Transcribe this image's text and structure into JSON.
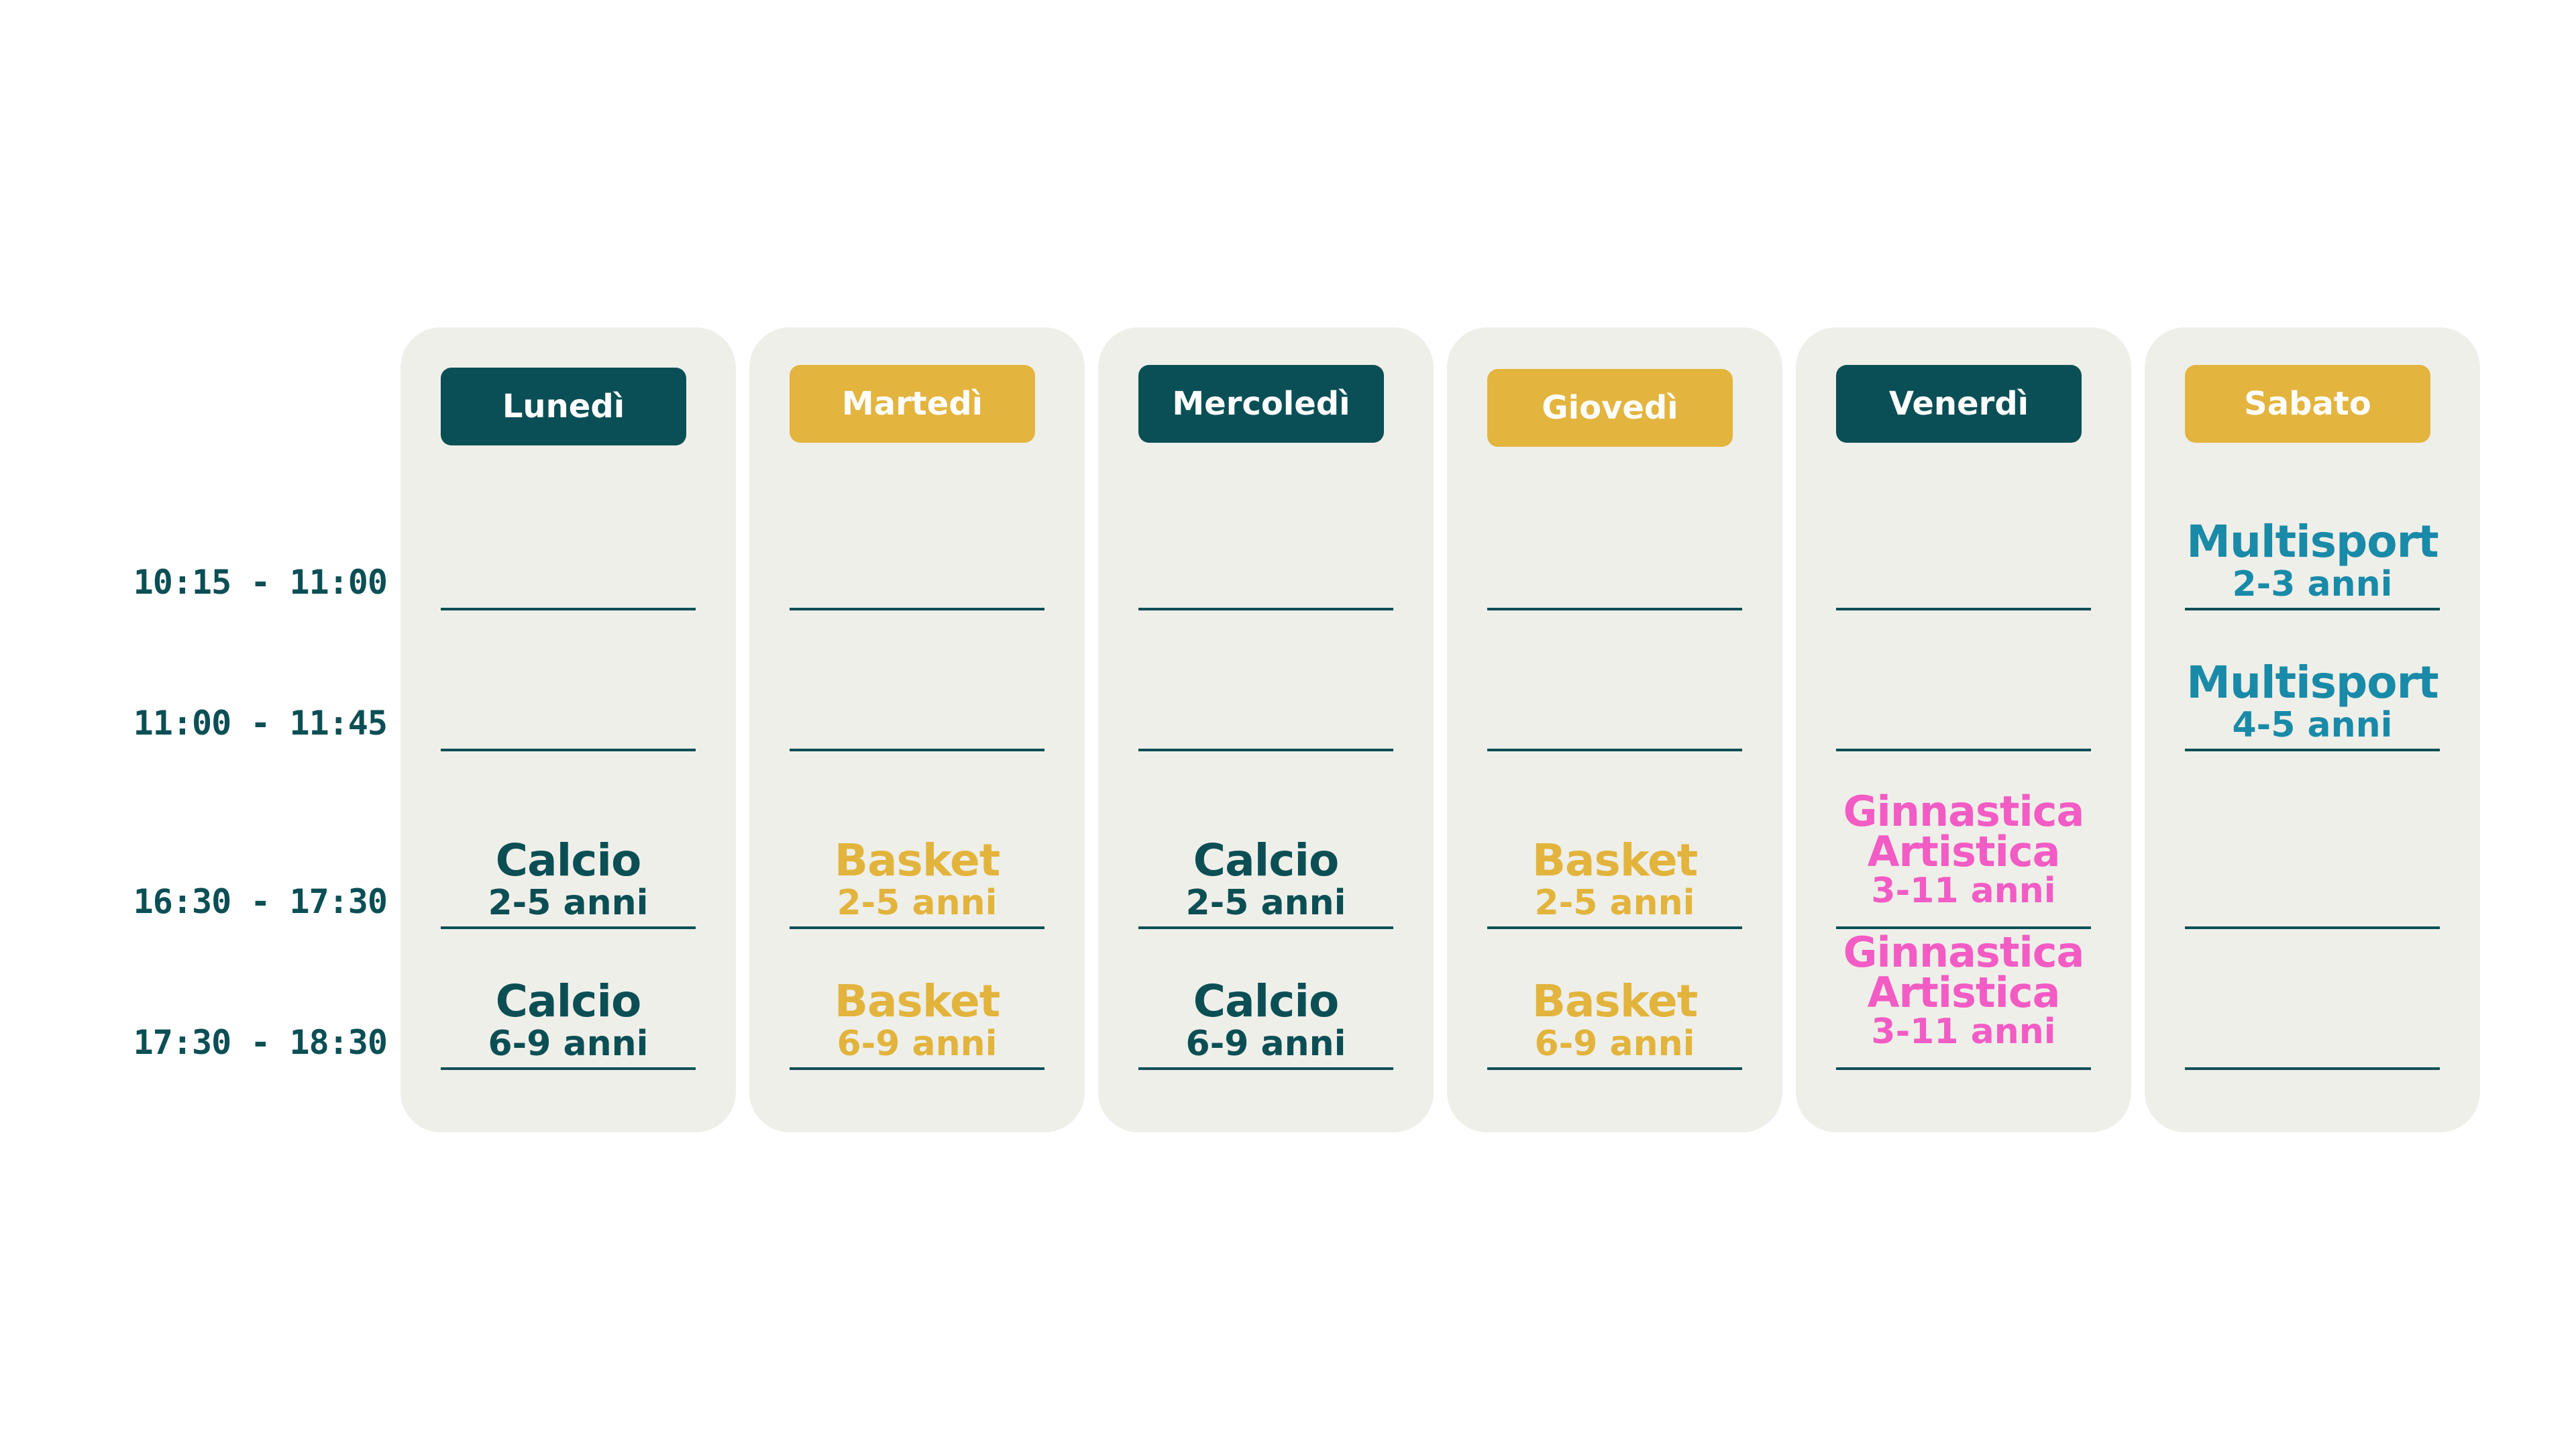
{
  "times": [
    "10:15 - 11:00",
    "11:00 - 11:45",
    "16:30 - 17:30",
    "17:30 - 18:30"
  ],
  "colors": {
    "dark_teal": "#0a4f55",
    "gold": "#e3b43e",
    "pink": "#f25cc4",
    "blue": "#198aa8",
    "column_bg": "#efefe9"
  },
  "days": [
    {
      "name": "Lunedì",
      "slots": [
        null,
        null,
        {
          "activity": "Calcio",
          "age": "2-5 anni"
        },
        {
          "activity": "Calcio",
          "age": "6-9 anni"
        }
      ]
    },
    {
      "name": "Martedì",
      "slots": [
        null,
        null,
        {
          "activity": "Basket",
          "age": "2-5 anni"
        },
        {
          "activity": "Basket",
          "age": "6-9 anni"
        }
      ]
    },
    {
      "name": "Mercoledì",
      "slots": [
        null,
        null,
        {
          "activity": "Calcio",
          "age": "2-5 anni"
        },
        {
          "activity": "Calcio",
          "age": "6-9 anni"
        }
      ]
    },
    {
      "name": "Giovedì",
      "slots": [
        null,
        null,
        {
          "activity": "Basket",
          "age": "2-5 anni"
        },
        {
          "activity": "Basket",
          "age": "6-9 anni"
        }
      ]
    },
    {
      "name": "Venerdì",
      "slots": [
        null,
        null,
        {
          "activity_line1": "Ginnastica",
          "activity_line2": "Artistica",
          "age": "3-11 anni"
        },
        {
          "activity_line1": "Ginnastica",
          "activity_line2": "Artistica",
          "age": "3-11 anni"
        }
      ]
    },
    {
      "name": "Sabato",
      "slots": [
        {
          "activity": "Multisport",
          "age": "2-3 anni"
        },
        {
          "activity": "Multisport",
          "age": "4-5 anni"
        },
        null,
        null
      ]
    }
  ]
}
